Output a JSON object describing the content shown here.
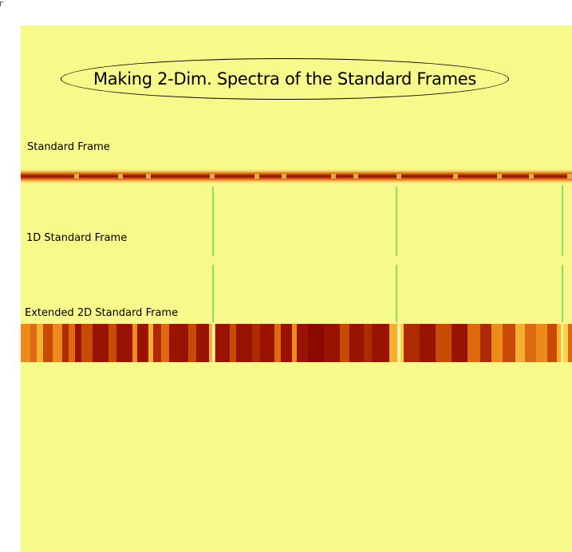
{
  "title": "Making 2-Dim. Spectra of the Standard Frames",
  "labels": {
    "standard_frame": "Standard Frame",
    "one_d_standard_frame": "1D Standard Frame",
    "extended_2d_standard_frame": "Extended 2D Standard Frame"
  },
  "colors": {
    "background": "#f8f98b",
    "marker_line": "#4ed14e",
    "band_dark": "#8b0000",
    "band_mid": "#c83c00",
    "band_bright": "#ffd24a"
  }
}
